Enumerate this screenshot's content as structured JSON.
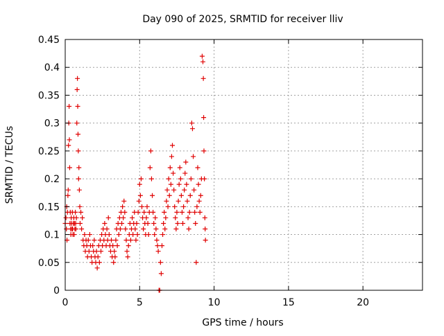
{
  "chart_data": {
    "type": "scatter",
    "title": "Day 090 of 2025, SRMTID for receiver lliv",
    "xlabel": "GPS time / hours",
    "ylabel": "SRMTID / TECUs",
    "xlim": [
      0,
      24
    ],
    "ylim": [
      0,
      0.45
    ],
    "xticks": [
      0,
      5,
      10,
      15,
      20
    ],
    "yticks": [
      0,
      0.05,
      0.1,
      0.15,
      0.2,
      0.25,
      0.3,
      0.35,
      0.4,
      0.45
    ],
    "grid": true,
    "marker": "+",
    "color": "#e00000",
    "series": [
      {
        "name": "SRMTID",
        "points": [
          [
            0.0,
            0.12
          ],
          [
            0.05,
            0.13
          ],
          [
            0.08,
            0.11
          ],
          [
            0.1,
            0.15
          ],
          [
            0.12,
            0.09
          ],
          [
            0.15,
            0.14
          ],
          [
            0.18,
            0.17
          ],
          [
            0.2,
            0.18
          ],
          [
            0.22,
            0.26
          ],
          [
            0.24,
            0.3
          ],
          [
            0.26,
            0.33
          ],
          [
            0.28,
            0.27
          ],
          [
            0.3,
            0.22
          ],
          [
            0.32,
            0.12
          ],
          [
            0.34,
            0.14
          ],
          [
            0.36,
            0.11
          ],
          [
            0.38,
            0.1
          ],
          [
            0.4,
            0.13
          ],
          [
            0.42,
            0.12
          ],
          [
            0.45,
            0.11
          ],
          [
            0.48,
            0.14
          ],
          [
            0.5,
            0.11
          ],
          [
            0.52,
            0.1
          ],
          [
            0.55,
            0.12
          ],
          [
            0.58,
            0.13
          ],
          [
            0.6,
            0.1
          ],
          [
            0.62,
            0.12
          ],
          [
            0.65,
            0.11
          ],
          [
            0.68,
            0.14
          ],
          [
            0.7,
            0.12
          ],
          [
            0.72,
            0.11
          ],
          [
            0.75,
            0.13
          ],
          [
            0.78,
            0.3
          ],
          [
            0.8,
            0.36
          ],
          [
            0.82,
            0.38
          ],
          [
            0.84,
            0.33
          ],
          [
            0.86,
            0.28
          ],
          [
            0.88,
            0.25
          ],
          [
            0.9,
            0.2
          ],
          [
            0.92,
            0.22
          ],
          [
            0.95,
            0.18
          ],
          [
            0.98,
            0.15
          ],
          [
            1.0,
            0.12
          ],
          [
            1.05,
            0.14
          ],
          [
            1.1,
            0.11
          ],
          [
            1.15,
            0.13
          ],
          [
            1.2,
            0.09
          ],
          [
            1.25,
            0.08
          ],
          [
            1.3,
            0.1
          ],
          [
            1.35,
            0.07
          ],
          [
            1.4,
            0.09
          ],
          [
            1.45,
            0.08
          ],
          [
            1.5,
            0.06
          ],
          [
            1.55,
            0.09
          ],
          [
            1.6,
            0.07
          ],
          [
            1.65,
            0.1
          ],
          [
            1.7,
            0.08
          ],
          [
            1.75,
            0.06
          ],
          [
            1.8,
            0.05
          ],
          [
            1.85,
            0.08
          ],
          [
            1.9,
            0.07
          ],
          [
            1.95,
            0.09
          ],
          [
            2.0,
            0.06
          ],
          [
            2.05,
            0.05
          ],
          [
            2.1,
            0.07
          ],
          [
            2.15,
            0.04
          ],
          [
            2.2,
            0.06
          ],
          [
            2.25,
            0.08
          ],
          [
            2.3,
            0.05
          ],
          [
            2.35,
            0.09
          ],
          [
            2.4,
            0.07
          ],
          [
            2.45,
            0.1
          ],
          [
            2.5,
            0.08
          ],
          [
            2.55,
            0.11
          ],
          [
            2.6,
            0.09
          ],
          [
            2.65,
            0.12
          ],
          [
            2.7,
            0.1
          ],
          [
            2.75,
            0.08
          ],
          [
            2.8,
            0.11
          ],
          [
            2.85,
            0.09
          ],
          [
            2.9,
            0.13
          ],
          [
            2.95,
            0.1
          ],
          [
            3.0,
            0.08
          ],
          [
            3.05,
            0.07
          ],
          [
            3.1,
            0.09
          ],
          [
            3.15,
            0.06
          ],
          [
            3.2,
            0.08
          ],
          [
            3.25,
            0.05
          ],
          [
            3.3,
            0.07
          ],
          [
            3.35,
            0.06
          ],
          [
            3.4,
            0.09
          ],
          [
            3.45,
            0.11
          ],
          [
            3.5,
            0.08
          ],
          [
            3.55,
            0.12
          ],
          [
            3.6,
            0.1
          ],
          [
            3.65,
            0.13
          ],
          [
            3.7,
            0.11
          ],
          [
            3.75,
            0.14
          ],
          [
            3.8,
            0.12
          ],
          [
            3.85,
            0.15
          ],
          [
            3.9,
            0.13
          ],
          [
            3.95,
            0.16
          ],
          [
            4.0,
            0.14
          ],
          [
            4.05,
            0.11
          ],
          [
            4.1,
            0.09
          ],
          [
            4.15,
            0.07
          ],
          [
            4.2,
            0.06
          ],
          [
            4.25,
            0.08
          ],
          [
            4.3,
            0.1
          ],
          [
            4.35,
            0.12
          ],
          [
            4.4,
            0.09
          ],
          [
            4.45,
            0.11
          ],
          [
            4.5,
            0.13
          ],
          [
            4.55,
            0.1
          ],
          [
            4.6,
            0.12
          ],
          [
            4.65,
            0.14
          ],
          [
            4.7,
            0.11
          ],
          [
            4.75,
            0.09
          ],
          [
            4.8,
            0.12
          ],
          [
            4.85,
            0.1
          ],
          [
            4.9,
            0.14
          ],
          [
            4.95,
            0.16
          ],
          [
            5.0,
            0.19
          ],
          [
            5.05,
            0.17
          ],
          [
            5.1,
            0.2
          ],
          [
            5.15,
            0.15
          ],
          [
            5.2,
            0.13
          ],
          [
            5.25,
            0.11
          ],
          [
            5.3,
            0.14
          ],
          [
            5.35,
            0.12
          ],
          [
            5.4,
            0.1
          ],
          [
            5.45,
            0.13
          ],
          [
            5.5,
            0.15
          ],
          [
            5.55,
            0.12
          ],
          [
            5.6,
            0.1
          ],
          [
            5.65,
            0.14
          ],
          [
            5.7,
            0.22
          ],
          [
            5.75,
            0.25
          ],
          [
            5.8,
            0.2
          ],
          [
            5.85,
            0.17
          ],
          [
            5.9,
            0.14
          ],
          [
            5.95,
            0.12
          ],
          [
            6.0,
            0.1
          ],
          [
            6.05,
            0.13
          ],
          [
            6.1,
            0.11
          ],
          [
            6.15,
            0.09
          ],
          [
            6.2,
            0.08
          ],
          [
            6.25,
            0.07
          ],
          [
            6.3,
            0.0
          ],
          [
            6.35,
            0.0
          ],
          [
            6.4,
            0.05
          ],
          [
            6.45,
            0.03
          ],
          [
            6.5,
            0.08
          ],
          [
            6.55,
            0.1
          ],
          [
            6.6,
            0.12
          ],
          [
            6.65,
            0.14
          ],
          [
            6.7,
            0.11
          ],
          [
            6.75,
            0.13
          ],
          [
            6.8,
            0.16
          ],
          [
            6.85,
            0.18
          ],
          [
            6.9,
            0.15
          ],
          [
            6.95,
            0.2
          ],
          [
            7.0,
            0.17
          ],
          [
            7.05,
            0.22
          ],
          [
            7.1,
            0.19
          ],
          [
            7.15,
            0.24
          ],
          [
            7.2,
            0.26
          ],
          [
            7.25,
            0.21
          ],
          [
            7.3,
            0.18
          ],
          [
            7.35,
            0.15
          ],
          [
            7.4,
            0.13
          ],
          [
            7.45,
            0.11
          ],
          [
            7.5,
            0.14
          ],
          [
            7.55,
            0.12
          ],
          [
            7.6,
            0.16
          ],
          [
            7.65,
            0.19
          ],
          [
            7.7,
            0.22
          ],
          [
            7.75,
            0.2
          ],
          [
            7.8,
            0.17
          ],
          [
            7.85,
            0.14
          ],
          [
            7.9,
            0.12
          ],
          [
            7.95,
            0.15
          ],
          [
            8.0,
            0.18
          ],
          [
            8.05,
            0.21
          ],
          [
            8.1,
            0.23
          ],
          [
            8.15,
            0.19
          ],
          [
            8.2,
            0.16
          ],
          [
            8.25,
            0.13
          ],
          [
            8.3,
            0.11
          ],
          [
            8.35,
            0.14
          ],
          [
            8.4,
            0.17
          ],
          [
            8.45,
            0.2
          ],
          [
            8.5,
            0.3
          ],
          [
            8.55,
            0.29
          ],
          [
            8.6,
            0.24
          ],
          [
            8.65,
            0.18
          ],
          [
            8.7,
            0.14
          ],
          [
            8.75,
            0.12
          ],
          [
            8.8,
            0.05
          ],
          [
            8.85,
            0.15
          ],
          [
            8.9,
            0.22
          ],
          [
            8.95,
            0.19
          ],
          [
            9.0,
            0.16
          ],
          [
            9.05,
            0.14
          ],
          [
            9.1,
            0.17
          ],
          [
            9.15,
            0.2
          ],
          [
            9.2,
            0.42
          ],
          [
            9.25,
            0.41
          ],
          [
            9.28,
            0.38
          ],
          [
            9.3,
            0.31
          ],
          [
            9.32,
            0.25
          ],
          [
            9.35,
            0.2
          ],
          [
            9.38,
            0.13
          ],
          [
            9.4,
            0.11
          ],
          [
            9.42,
            0.09
          ]
        ]
      }
    ]
  }
}
